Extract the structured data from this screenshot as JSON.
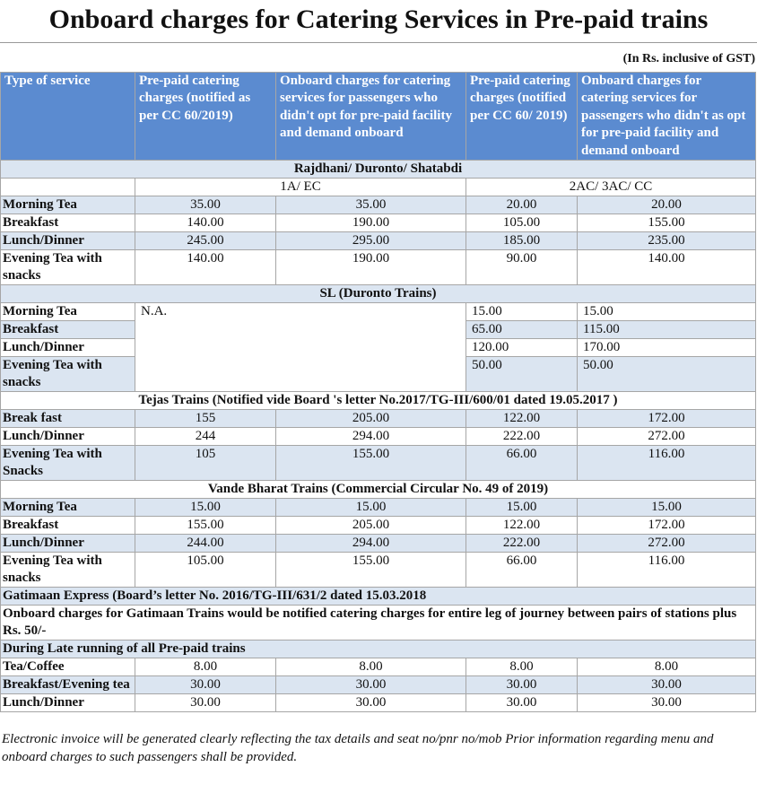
{
  "title": "Onboard charges for Catering Services in Pre-paid trains",
  "note": "(In Rs. inclusive of GST)",
  "table": {
    "header": [
      "Type of service",
      "Pre-paid catering charges (notified as per CC 60/2019)",
      "Onboard charges for catering services for passengers who didn't opt for pre-paid facility and demand onboard",
      "Pre-paid catering charges (notified per CC 60/ 2019)",
      "Onboard charges for catering services for passengers who didn't as opt for pre-paid facility and demand onboard"
    ],
    "sections": [
      {
        "title": "Rajdhani/ Duronto/ Shatabdi",
        "subheader": [
          "1A/ EC",
          "2AC/ 3AC/ CC"
        ],
        "rows": [
          [
            "Morning Tea",
            "35.00",
            "35.00",
            "20.00",
            "20.00"
          ],
          [
            "Breakfast",
            "140.00",
            "190.00",
            "105.00",
            "155.00"
          ],
          [
            "Lunch/Dinner",
            "245.00",
            "295.00",
            "185.00",
            "235.00"
          ],
          [
            "Evening Tea with snacks",
            "140.00",
            "190.00",
            "90.00",
            "140.00"
          ]
        ]
      },
      {
        "title": "SL (Duronto Trains)",
        "na": "N.A.",
        "rows": [
          [
            "Morning Tea",
            "15.00",
            "15.00"
          ],
          [
            "Breakfast",
            "65.00",
            "115.00"
          ],
          [
            "Lunch/Dinner",
            "120.00",
            "170.00"
          ],
          [
            "Evening Tea with snacks",
            "50.00",
            "50.00"
          ]
        ]
      },
      {
        "title": "Tejas Trains (Notified vide Board 's letter No.2017/TG-III/600/01 dated 19.05.2017 )",
        "rows": [
          [
            "Break fast",
            "155",
            "205.00",
            "122.00",
            "172.00"
          ],
          [
            "Lunch/Dinner",
            "244",
            "294.00",
            "222.00",
            "272.00"
          ],
          [
            "Evening Tea with Snacks",
            "105",
            "155.00",
            "66.00",
            "116.00"
          ]
        ]
      },
      {
        "title": "Vande Bharat Trains (Commercial Circular No. 49 of 2019)",
        "rows": [
          [
            "Morning Tea",
            "15.00",
            "15.00",
            "15.00",
            "15.00"
          ],
          [
            "Breakfast",
            "155.00",
            "205.00",
            "122.00",
            "172.00"
          ],
          [
            "Lunch/Dinner",
            "244.00",
            "294.00",
            "222.00",
            "272.00"
          ],
          [
            "Evening Tea with snacks",
            "105.00",
            "155.00",
            "66.00",
            "116.00"
          ]
        ]
      },
      {
        "title": "Gatimaan Express (Board’s letter No. 2016/TG-III/631/2 dated 15.03.2018",
        "text": "Onboard charges for Gatimaan Trains would be notified catering charges for entire leg of journey between pairs of stations plus Rs. 50/-"
      },
      {
        "title": "During Late running of all Pre-paid trains",
        "rows": [
          [
            "Tea/Coffee",
            "8.00",
            "8.00",
            "8.00",
            "8.00"
          ],
          [
            "Breakfast/Evening tea",
            "30.00",
            "30.00",
            "30.00",
            "30.00"
          ],
          [
            "Lunch/Dinner",
            "30.00",
            "30.00",
            "30.00",
            "30.00"
          ]
        ]
      }
    ]
  },
  "footnote": "Electronic invoice will be generated clearly reflecting the tax details and seat no/pnr no/mob Prior information regarding menu and onboard charges to such passengers shall be provided."
}
